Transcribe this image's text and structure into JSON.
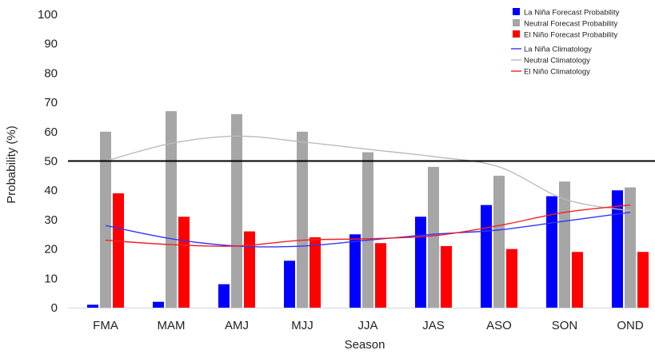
{
  "chart_data": {
    "type": "bar",
    "title": "",
    "xlabel": "Season",
    "ylabel": "Probability (%)",
    "ylim": [
      0,
      100
    ],
    "yticks": [
      0,
      10,
      20,
      30,
      40,
      50,
      60,
      70,
      80,
      90,
      100
    ],
    "categories": [
      "FMA",
      "MAM",
      "AMJ",
      "MJJ",
      "JJA",
      "JAS",
      "ASO",
      "SON",
      "OND"
    ],
    "series": [
      {
        "name": "La Niña Forecast Probability",
        "color": "#0000ff",
        "values": [
          1,
          2,
          8,
          16,
          25,
          31,
          35,
          38,
          40
        ]
      },
      {
        "name": "Neutral Forecast Probability",
        "color": "#a6a6a6",
        "values": [
          60,
          67,
          66,
          60,
          53,
          48,
          45,
          43,
          41
        ]
      },
      {
        "name": "El Niño Forecast Probability",
        "color": "#ff0000",
        "values": [
          39,
          31,
          26,
          24,
          22,
          21,
          20,
          19,
          19
        ]
      }
    ],
    "climatology": [
      {
        "name": "La Niña Climatology",
        "color": "#3333ff",
        "values": [
          28,
          23.5,
          21,
          21,
          23,
          25,
          26.5,
          29.5,
          32.5
        ]
      },
      {
        "name": "Neutral Climatology",
        "color": "#bbbbbb",
        "values": [
          50,
          56,
          58.5,
          56.5,
          54,
          51.5,
          48,
          37,
          33
        ]
      },
      {
        "name": "El Niño Climatology",
        "color": "#ee2222",
        "values": [
          23,
          21.5,
          21,
          23,
          23.5,
          24.5,
          28,
          32.5,
          35
        ]
      }
    ],
    "reference_line": {
      "value": 50,
      "color": "#000000"
    },
    "grid": false,
    "legend": "top-right"
  }
}
